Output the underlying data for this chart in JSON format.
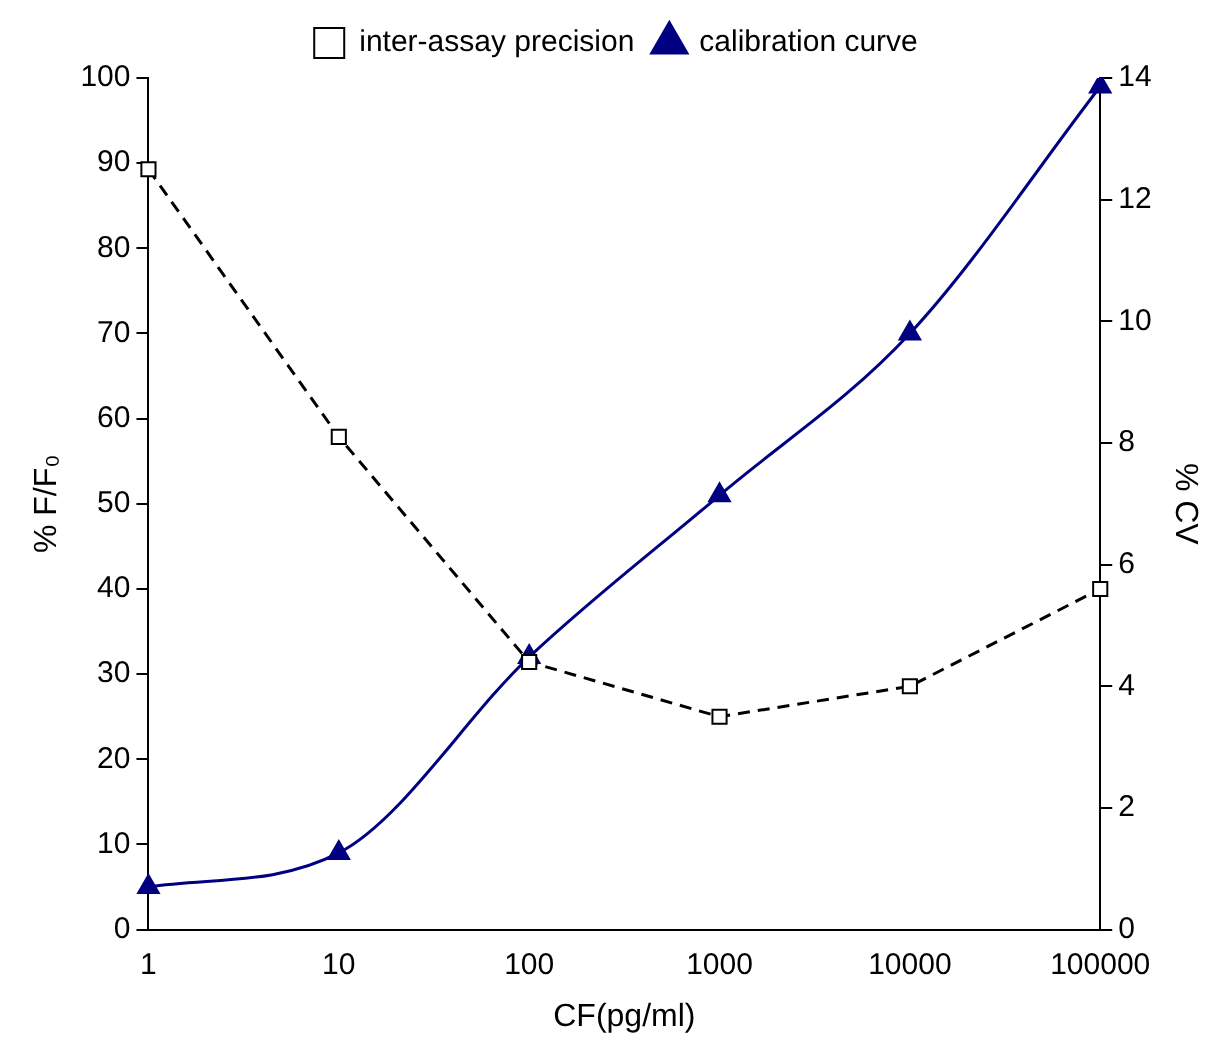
{
  "chart_data": {
    "type": "line",
    "xlabel": "CF(pg/ml)",
    "ylabel": "% F/F₀",
    "y2label": "% CV",
    "categories": [
      "1",
      "10",
      "100",
      "1000",
      "10000",
      "100000"
    ],
    "series": [
      {
        "name": "calibration curve",
        "color": "#000080",
        "values": [
          5,
          9,
          32,
          51,
          70,
          99
        ],
        "marker": "triangle",
        "line_style": "solid"
      },
      {
        "name": "inter-assay precision",
        "color": "#000000",
        "values": [
          12.5,
          8.1,
          4.4,
          3.5,
          4.0,
          5.6
        ],
        "axis": "y2",
        "marker": "square",
        "line_style": "dashed"
      }
    ],
    "ylim": [
      0,
      100
    ],
    "yticks": [
      0,
      10,
      20,
      30,
      40,
      50,
      60,
      70,
      80,
      90,
      100
    ],
    "y2lim": [
      0,
      14
    ],
    "y2ticks": [
      0,
      2,
      4,
      6,
      8,
      10,
      12,
      14
    ],
    "grid": false,
    "legend": "top"
  }
}
